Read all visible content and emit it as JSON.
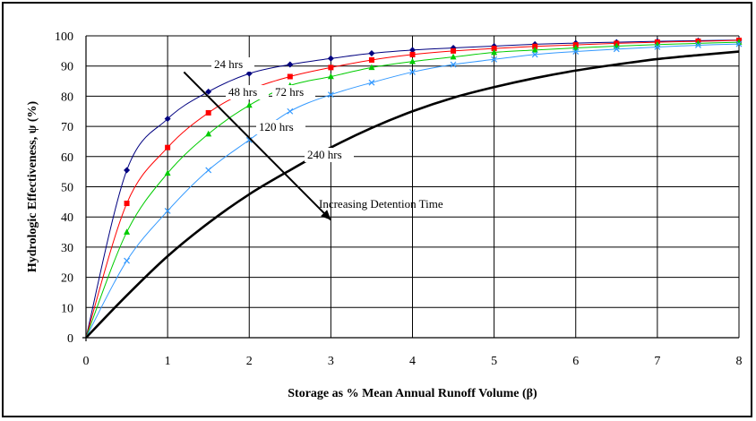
{
  "chart_data": {
    "type": "line",
    "xlabel": "Storage as % Mean Annual Runoff Volume (β)",
    "ylabel": "Hydrologic Effectiveness, ψ (%)",
    "xlim": [
      0,
      8
    ],
    "ylim": [
      0,
      100
    ],
    "x_ticks": [
      "0",
      "1",
      "2",
      "3",
      "4",
      "5",
      "6",
      "7",
      "8"
    ],
    "y_ticks": [
      "0",
      "10",
      "20",
      "30",
      "40",
      "50",
      "60",
      "70",
      "80",
      "90",
      "100"
    ],
    "grid": true,
    "x": [
      0,
      0.5,
      1,
      1.5,
      2,
      2.5,
      3,
      3.5,
      4,
      4.5,
      5,
      5.5,
      6,
      6.5,
      7,
      7.5,
      8
    ],
    "series": [
      {
        "name": "24 hrs",
        "color": "#000080",
        "marker": "diamond",
        "values": [
          0,
          55.5,
          72.5,
          81.5,
          87.5,
          90.5,
          92.5,
          94.2,
          95.3,
          96.0,
          96.6,
          97.2,
          97.6,
          97.9,
          98.2,
          98.4,
          98.6
        ]
      },
      {
        "name": "48 hrs",
        "color": "#ff0000",
        "marker": "square",
        "values": [
          0,
          44.5,
          63,
          74.5,
          82,
          86.5,
          89.5,
          92,
          93.8,
          95,
          95.8,
          96.5,
          97,
          97.5,
          97.9,
          98.2,
          98.5
        ]
      },
      {
        "name": "72 hrs",
        "color": "#00cc00",
        "marker": "triangle",
        "values": [
          0,
          35,
          54.5,
          67.5,
          77,
          83.5,
          86.5,
          89.5,
          91.5,
          93,
          94.5,
          95.3,
          96,
          96.6,
          97.1,
          97.5,
          97.9
        ]
      },
      {
        "name": "120 hrs",
        "color": "#3399ff",
        "marker": "x",
        "values": [
          0,
          25.5,
          42,
          55.5,
          65.5,
          75,
          80.5,
          84.5,
          88,
          90.5,
          92.2,
          93.8,
          94.8,
          95.6,
          96.3,
          96.9,
          97.3
        ]
      },
      {
        "name": "240 hrs",
        "color": "#000000",
        "marker": "none",
        "values": [
          0,
          14,
          27,
          38,
          47.5,
          55.5,
          63,
          69.5,
          75,
          79.5,
          83,
          86,
          88.5,
          90.5,
          92.3,
          93.6,
          94.8
        ]
      }
    ],
    "annotation": {
      "text": "Increasing Detention Time",
      "arrow_from": [
        1.2,
        88
      ],
      "arrow_to": [
        3.0,
        39
      ]
    }
  }
}
